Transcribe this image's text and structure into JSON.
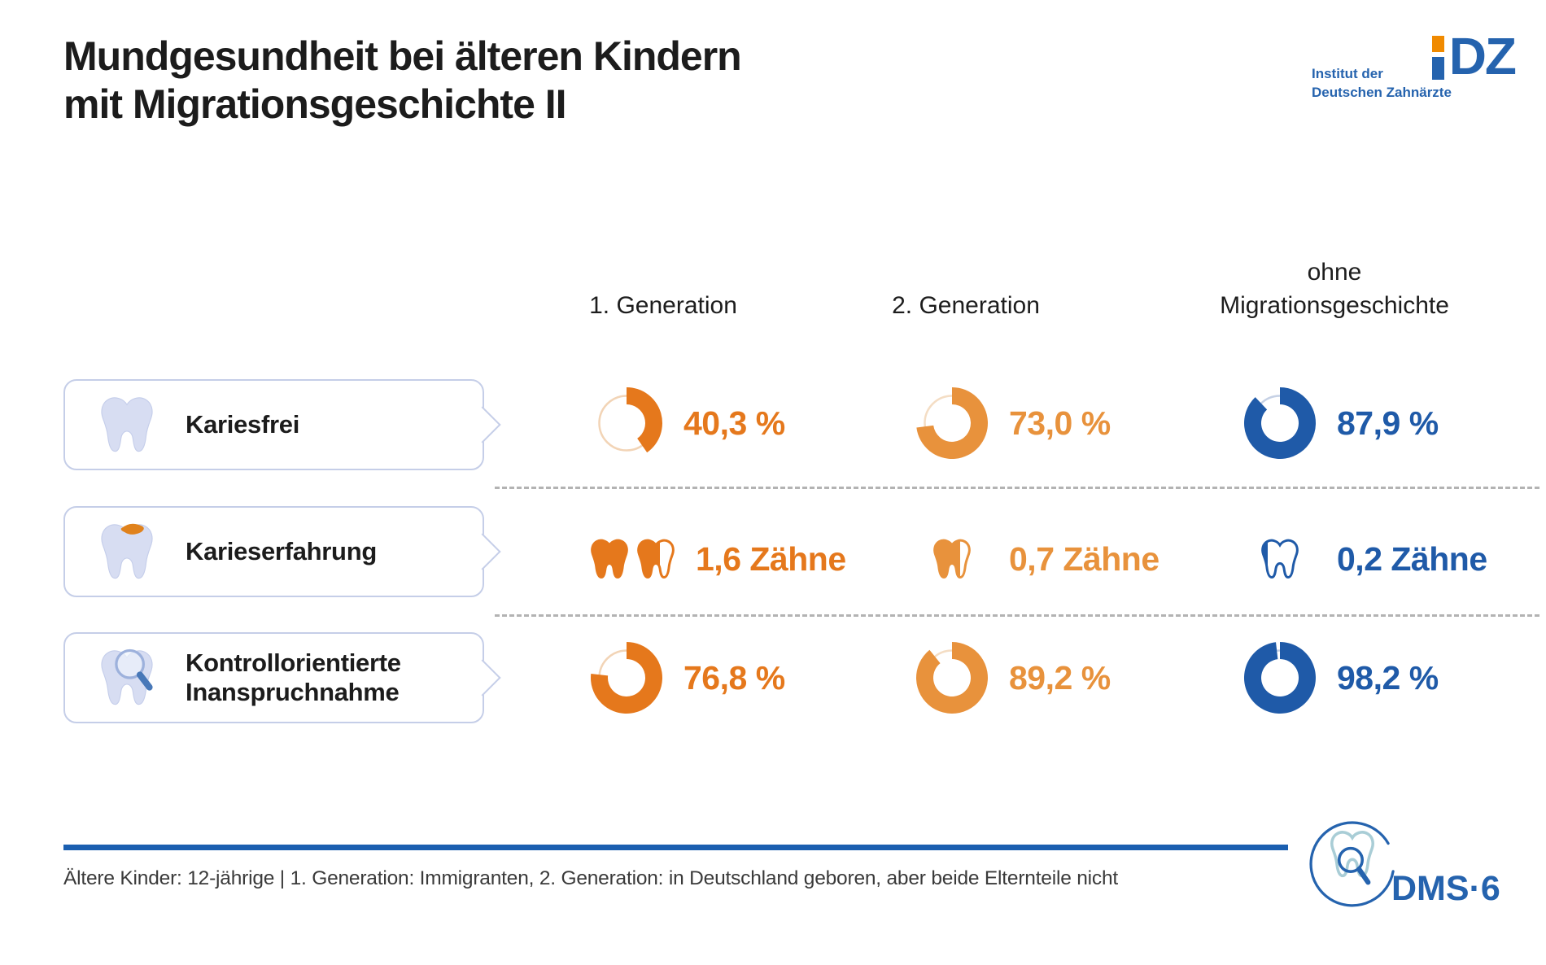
{
  "title": {
    "line1": "Mundgesundheit bei älteren Kindern",
    "line2": "mit Migrationsgeschichte II"
  },
  "idz_logo": {
    "line1": "Institut der",
    "line2": "Deutschen Zahnärzte",
    "letters": "DZ",
    "orange": "#F08A00",
    "blue": "#2563AE"
  },
  "columns": [
    {
      "label": "1. Generation",
      "color": "#E5781C",
      "track": "#F2D4B6"
    },
    {
      "label": "2. Generation",
      "color": "#E8923C",
      "track": "#F4DDC4"
    },
    {
      "label": "ohne Migrationsgeschichte",
      "color": "#1F5AA8",
      "track": "#C6D1E5"
    }
  ],
  "rows": [
    {
      "label": "Kariesfrei",
      "icon": "tooth",
      "type": "donut",
      "cells": [
        {
          "value": 40.3,
          "display": "40,3 %"
        },
        {
          "value": 73.0,
          "display": "73,0 %"
        },
        {
          "value": 87.9,
          "display": "87,9 %"
        }
      ]
    },
    {
      "label": "Kontrollorientierte Inanspruchnahme",
      "icon": "tooth-magnifier",
      "type": "donut",
      "cells": [
        {
          "value": 76.8,
          "display": "76,8 %"
        },
        {
          "value": 89.2,
          "display": "89,2 %"
        },
        {
          "value": 98.2,
          "display": "98,2 %"
        }
      ]
    }
  ],
  "row_teeth": {
    "label": "Karieserfahrung",
    "icon": "tooth-caries",
    "type": "teeth",
    "cells": [
      {
        "value": 1.6,
        "display": "1,6 Zähne"
      },
      {
        "value": 0.7,
        "display": "0,7 Zähne"
      },
      {
        "value": 0.2,
        "display": "0,2 Zähne"
      }
    ]
  },
  "footnote": "Ältere Kinder: 12-jährige | 1. Generation: Immigranten, 2. Generation: in Deutschland geboren, aber beide Elternteile nicht",
  "dms_logo": {
    "text": "DMS·6"
  },
  "chart_data": {
    "type": "donut",
    "title": "Mundgesundheit bei älteren Kindern mit Migrationsgeschichte II",
    "categories": [
      "1. Generation",
      "2. Generation",
      "ohne Migrationsgeschichte"
    ],
    "series": [
      {
        "name": "Kariesfrei",
        "unit": "%",
        "values": [
          40.3,
          73.0,
          87.9
        ]
      },
      {
        "name": "Karieserfahrung",
        "unit": "Zähne",
        "values": [
          1.6,
          0.7,
          0.2
        ]
      },
      {
        "name": "Kontrollorientierte Inanspruchnahme",
        "unit": "%",
        "values": [
          76.8,
          89.2,
          98.2
        ]
      }
    ],
    "legend_position": "none",
    "grid": false,
    "note": "Ältere Kinder: 12-jährige | 1. Generation: Immigranten, 2. Generation: in Deutschland geboren, aber beide Elternteile nicht"
  }
}
